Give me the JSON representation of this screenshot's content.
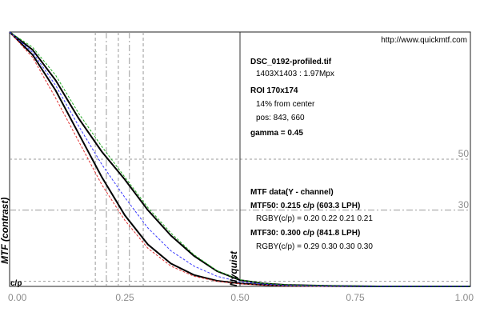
{
  "header": {
    "url": "http://www.quickmtf.com"
  },
  "info": {
    "filename": "DSC_0192-profiled.tif",
    "dimensions": "1403X1403 : 1.97Mpx",
    "roi": "ROI 170x174",
    "center": "14% from center",
    "pos": "pos: 843, 660",
    "gamma": "gamma = 0.45"
  },
  "mtf": {
    "heading": "MTF data(Y - channel)",
    "mtf50": "MTF50: 0.215 c/p (603.3 LPH)",
    "rgby50": "RGBY(c/p) = 0.20 0.22 0.21 0.21",
    "mtf30": "MTF30: 0.300 c/p (841.8 LPH)",
    "rgby30": "RGBY(c/p) = 0.29 0.30 0.30 0.30"
  },
  "chart_data": {
    "type": "line",
    "xlabel": "c/p",
    "ylabel": "MTF (contrast)",
    "xlim": [
      0,
      1
    ],
    "ylim": [
      0,
      1
    ],
    "x_ticks": [
      "0.00",
      "0.25",
      "0.50",
      "0.75",
      "1.00"
    ],
    "x_tick_values": [
      0,
      0.25,
      0.5,
      0.75,
      1.0
    ],
    "reference_lines": [
      {
        "label": "50",
        "y": 0.5
      },
      {
        "label": "30",
        "y": 0.3
      },
      {
        "label": "Nyquist",
        "x": 0.5
      }
    ],
    "markers_x": [
      0.186,
      0.21,
      0.236,
      0.26,
      0.29
    ],
    "x": [
      0,
      0.05,
      0.1,
      0.15,
      0.2,
      0.25,
      0.3,
      0.35,
      0.4,
      0.45,
      0.5,
      0.55,
      0.6,
      0.7,
      0.8,
      0.9,
      1.0
    ],
    "series": [
      {
        "color": "#000000",
        "values": [
          1.0,
          0.93,
          0.81,
          0.66,
          0.53,
          0.42,
          0.3,
          0.2,
          0.12,
          0.06,
          0.025,
          0.012,
          0.006,
          0.002,
          0.0,
          0.0,
          0.0
        ]
      },
      {
        "color": "#000000",
        "values": [
          1.0,
          0.91,
          0.77,
          0.6,
          0.43,
          0.28,
          0.165,
          0.09,
          0.045,
          0.022,
          0.012,
          0.006,
          0.003,
          0.001,
          0.0,
          0.0,
          0.0
        ]
      },
      {
        "color": "#e03030",
        "values": [
          1.0,
          0.9,
          0.74,
          0.57,
          0.4,
          0.26,
          0.15,
          0.08,
          0.04,
          0.02,
          0.01,
          0.005,
          0.002,
          0.0,
          0.0,
          0.0,
          0.0
        ]
      },
      {
        "color": "#22aa22",
        "values": [
          1.0,
          0.94,
          0.83,
          0.68,
          0.55,
          0.43,
          0.31,
          0.21,
          0.125,
          0.062,
          0.026,
          0.012,
          0.006,
          0.002,
          0.0,
          0.0,
          0.0
        ]
      },
      {
        "color": "#3a3aff",
        "values": [
          1.0,
          0.92,
          0.79,
          0.63,
          0.48,
          0.35,
          0.23,
          0.14,
          0.08,
          0.04,
          0.018,
          0.009,
          0.004,
          0.001,
          0.0,
          0.0,
          0.0
        ]
      }
    ]
  }
}
